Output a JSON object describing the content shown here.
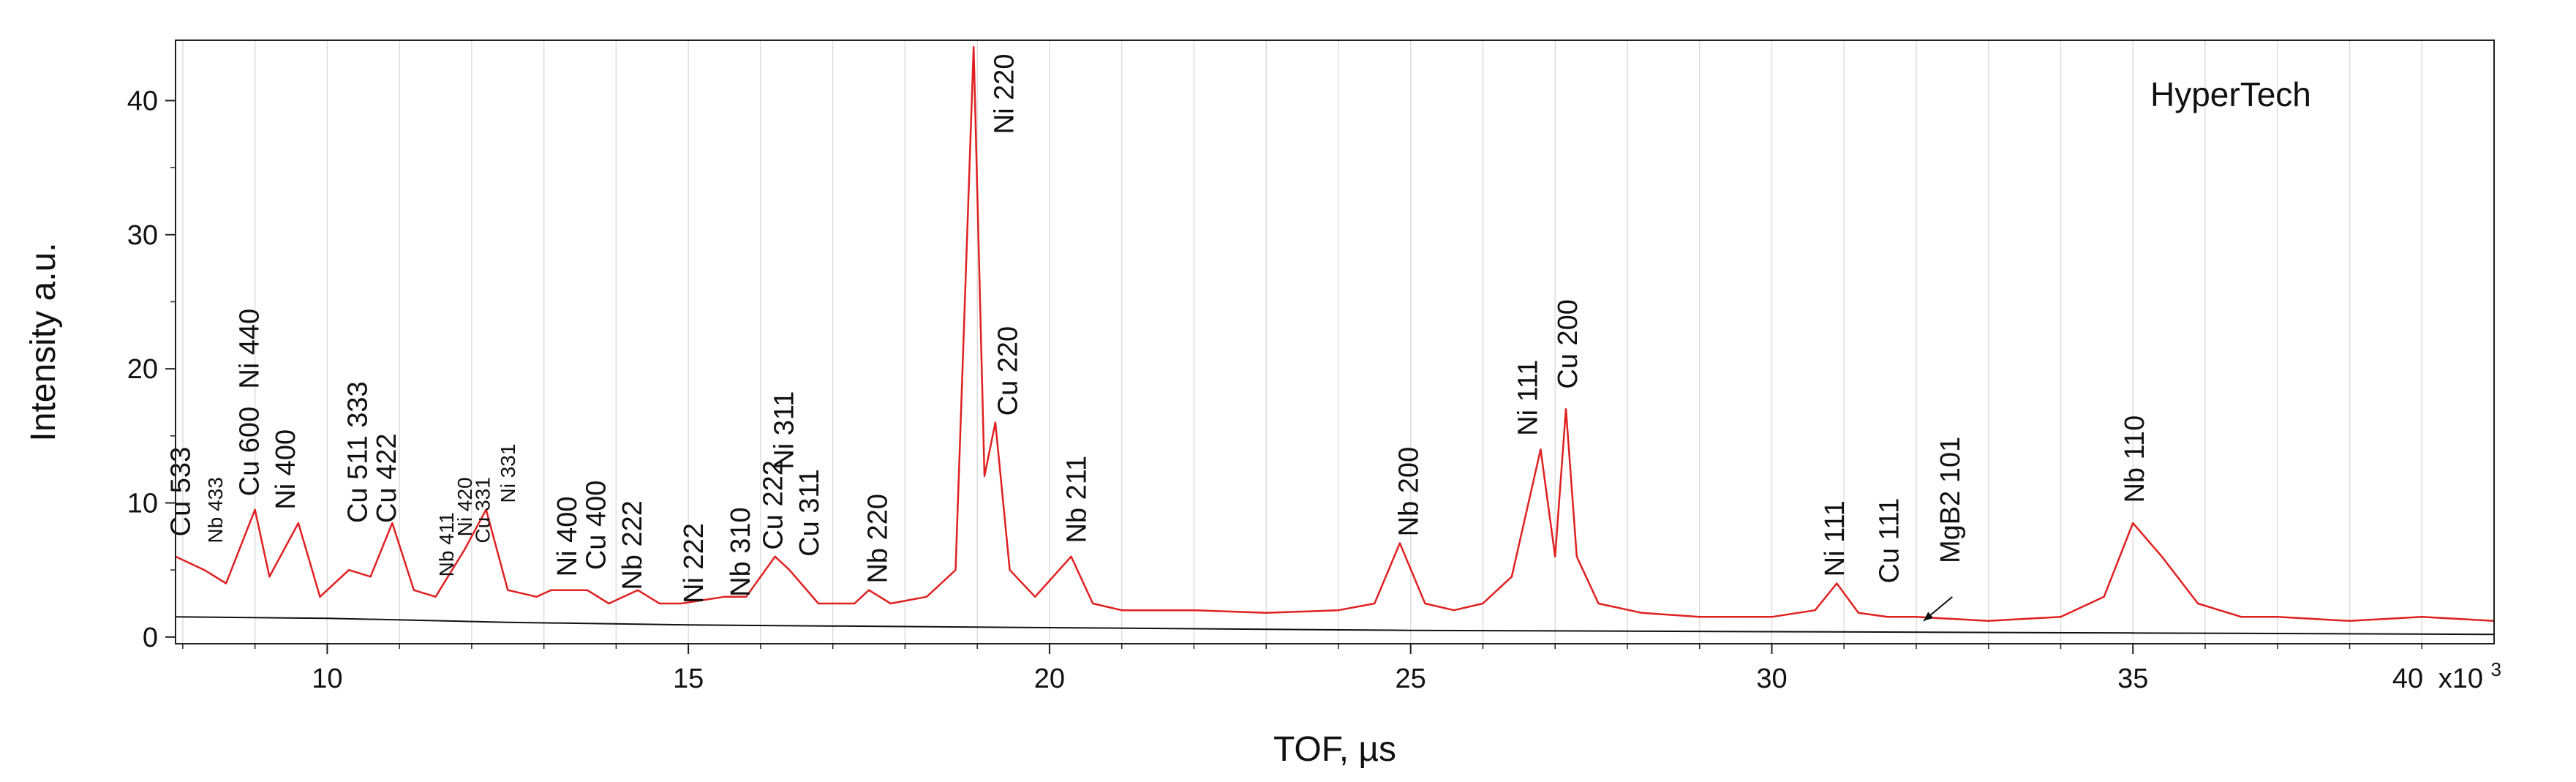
{
  "chart_data": {
    "type": "line",
    "watermark": "HyperTech",
    "xlabel": "TOF, µs",
    "ylabel": "Intensity a.u.",
    "x_multiplier_label": "x10",
    "x_multiplier_exponent": "3",
    "x_last_tick": "40",
    "xlim": [
      7.9,
      40.0
    ],
    "ylim": [
      -0.5,
      44.5
    ],
    "x_ticks": [
      10,
      15,
      20,
      25,
      30,
      35
    ],
    "x_tick_labels": [
      "10",
      "15",
      "20",
      "25",
      "30",
      "35"
    ],
    "y_ticks": [
      0,
      10,
      20,
      30,
      40
    ],
    "y_tick_labels": [
      "0",
      "10",
      "20",
      "30",
      "40"
    ],
    "x_minor_step": 1,
    "grid": "vertical",
    "legend": "none",
    "colors": {
      "series": "#e02020",
      "background_line": "#111111",
      "grid": "#dddddd",
      "cu": "#111111",
      "ni": "#1f4fd8",
      "nb": "#e020c8",
      "mgb2": "#e02020"
    },
    "series": [
      {
        "x": [
          7.9,
          8.3,
          8.6,
          9.0,
          9.2,
          9.6,
          9.9,
          10.3,
          10.6,
          10.9,
          11.2,
          11.5,
          11.9,
          12.2,
          12.5,
          12.9,
          13.1,
          13.6,
          13.9,
          14.3,
          14.6,
          14.9,
          15.5,
          15.8,
          16.2,
          16.4,
          16.8,
          17.3,
          17.5,
          17.8,
          18.3,
          18.7,
          18.95,
          19.1,
          19.25,
          19.45,
          19.8,
          20.3,
          20.6,
          21.0,
          22.0,
          23.0,
          24.0,
          24.5,
          24.85,
          25.2,
          25.6,
          26.0,
          26.4,
          26.8,
          27.0,
          27.15,
          27.3,
          27.6,
          28.2,
          29.0,
          30.0,
          30.6,
          30.9,
          31.2,
          31.6,
          32.0,
          33.0,
          34.0,
          34.6,
          35.0,
          35.4,
          35.9,
          36.5,
          37.0,
          38.0,
          39.0,
          40.0
        ],
        "y": [
          6.0,
          5.0,
          4.0,
          9.5,
          4.5,
          8.5,
          3.0,
          5.0,
          4.5,
          8.5,
          3.5,
          3.0,
          6.5,
          9.5,
          3.5,
          3.0,
          3.5,
          3.5,
          2.5,
          3.5,
          2.5,
          2.5,
          3.0,
          3.0,
          6.0,
          5.0,
          2.5,
          2.5,
          3.5,
          2.5,
          3.0,
          5.0,
          44.0,
          12.0,
          16.0,
          5.0,
          3.0,
          6.0,
          2.5,
          2.0,
          2.0,
          1.8,
          2.0,
          2.5,
          7.0,
          2.5,
          2.0,
          2.5,
          4.5,
          14.0,
          6.0,
          17.0,
          6.0,
          2.5,
          1.8,
          1.5,
          1.5,
          2.0,
          4.0,
          1.8,
          1.5,
          1.5,
          1.2,
          1.5,
          3.0,
          8.5,
          6.0,
          2.5,
          1.5,
          1.5,
          1.2,
          1.5,
          1.2
        ]
      },
      {
        "x": [
          7.9,
          10.0,
          12.5,
          15.0,
          20.0,
          25.0,
          30.0,
          35.0,
          40.0
        ],
        "y": [
          1.5,
          1.4,
          1.1,
          0.9,
          0.7,
          0.5,
          0.4,
          0.3,
          0.2
        ]
      }
    ],
    "annotations": [
      {
        "text": "Cu 533",
        "x": 8.1,
        "y": 7.5,
        "color": "#111111",
        "size": "large"
      },
      {
        "text": "Nb 433",
        "x": 8.55,
        "y": 7.0,
        "color": "#e020c8",
        "size": "small"
      },
      {
        "text": "Cu 600",
        "x": 9.05,
        "y": 10.5,
        "color": "#111111",
        "size": "large"
      },
      {
        "text": "Ni 440",
        "x": 9.05,
        "y": 18.5,
        "color": "#1f4fd8",
        "size": "large"
      },
      {
        "text": "Ni 400",
        "x": 9.55,
        "y": 9.5,
        "color": "#1f4fd8",
        "size": "large"
      },
      {
        "text": "Cu 511 333",
        "x": 10.55,
        "y": 8.5,
        "color": "#111111",
        "size": "large"
      },
      {
        "text": "Cu 422",
        "x": 10.95,
        "y": 8.5,
        "color": "#111111",
        "size": "large"
      },
      {
        "text": "Nb 411",
        "x": 11.75,
        "y": 4.5,
        "color": "#e020c8",
        "size": "small"
      },
      {
        "text": "Ni 420",
        "x": 12.0,
        "y": 7.5,
        "color": "#1f4fd8",
        "size": "small"
      },
      {
        "text": "Cu 331",
        "x": 12.25,
        "y": 7.0,
        "color": "#111111",
        "size": "small"
      },
      {
        "text": "Ni 331",
        "x": 12.6,
        "y": 10.0,
        "color": "#1f4fd8",
        "size": "small"
      },
      {
        "text": "Ni 400",
        "x": 13.45,
        "y": 4.5,
        "color": "#1f4fd8",
        "size": "large"
      },
      {
        "text": "Cu 400",
        "x": 13.85,
        "y": 5.0,
        "color": "#111111",
        "size": "large"
      },
      {
        "text": "Nb 222",
        "x": 14.35,
        "y": 3.5,
        "color": "#e020c8",
        "size": "large"
      },
      {
        "text": "Ni 222",
        "x": 15.2,
        "y": 2.5,
        "color": "#1f4fd8",
        "size": "large"
      },
      {
        "text": "Nb 310",
        "x": 15.85,
        "y": 3.0,
        "color": "#e020c8",
        "size": "large"
      },
      {
        "text": "Cu 222",
        "x": 16.3,
        "y": 6.5,
        "color": "#111111",
        "size": "large"
      },
      {
        "text": "Ni 311",
        "x": 16.45,
        "y": 12.5,
        "color": "#1f4fd8",
        "size": "large"
      },
      {
        "text": "Cu 311",
        "x": 16.8,
        "y": 6.0,
        "color": "#111111",
        "size": "large"
      },
      {
        "text": "Nb 220",
        "x": 17.75,
        "y": 4.0,
        "color": "#e020c8",
        "size": "large"
      },
      {
        "text": "Ni 220",
        "x": 19.5,
        "y": 37.5,
        "color": "#1f4fd8",
        "size": "large"
      },
      {
        "text": "Cu 220",
        "x": 19.55,
        "y": 16.5,
        "color": "#111111",
        "size": "large"
      },
      {
        "text": "Nb 211",
        "x": 20.5,
        "y": 7.0,
        "color": "#e020c8",
        "size": "large"
      },
      {
        "text": "Nb 200",
        "x": 25.1,
        "y": 7.5,
        "color": "#e020c8",
        "size": "large"
      },
      {
        "text": "Ni 111",
        "x": 26.75,
        "y": 15.0,
        "color": "#1f4fd8",
        "size": "large"
      },
      {
        "text": "Cu 200",
        "x": 27.3,
        "y": 18.5,
        "color": "#111111",
        "size": "large"
      },
      {
        "text": "Ni 111",
        "x": 31.0,
        "y": 4.5,
        "color": "#1f4fd8",
        "size": "large"
      },
      {
        "text": "Cu 111",
        "x": 31.75,
        "y": 4.0,
        "color": "#111111",
        "size": "large"
      },
      {
        "text": "MgB2 101",
        "x": 32.6,
        "y": 5.5,
        "color": "#e02020",
        "size": "large"
      },
      {
        "text": "Nb 110",
        "x": 35.15,
        "y": 10.0,
        "color": "#e020c8",
        "size": "large"
      }
    ],
    "arrow": {
      "x_from": 32.5,
      "y_from": 3.0,
      "x_to": 32.1,
      "y_to": 1.2
    }
  }
}
